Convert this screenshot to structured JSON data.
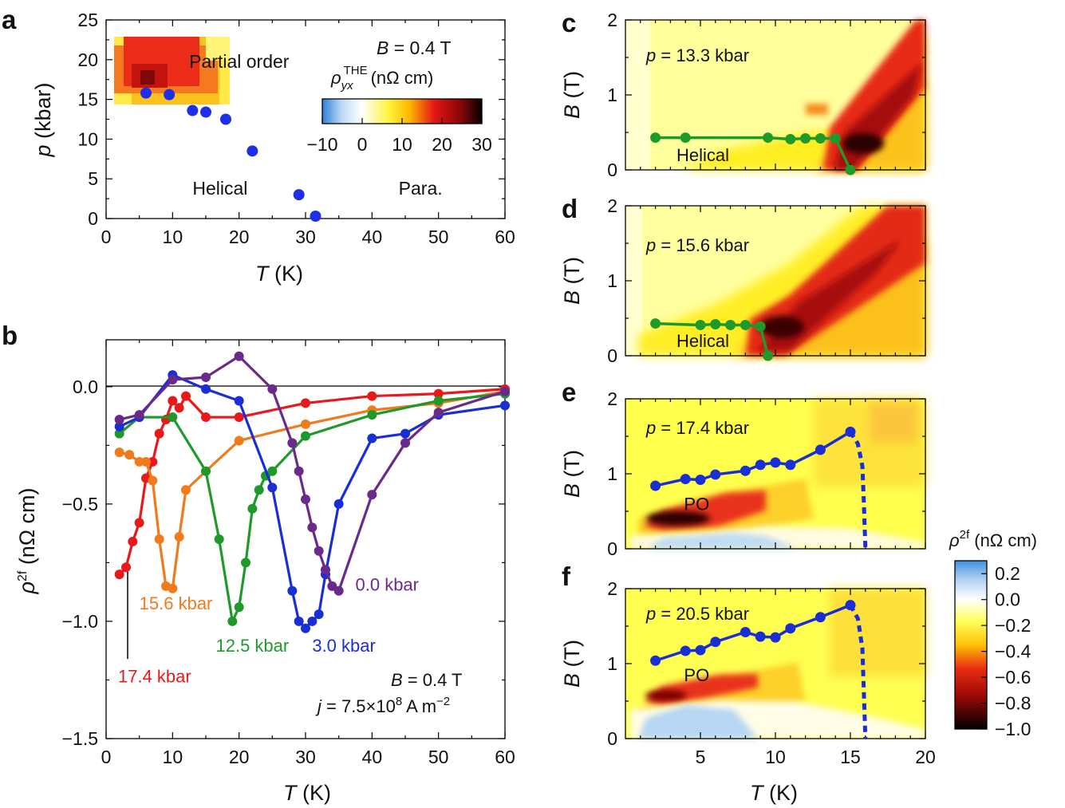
{
  "chart_data": [
    {
      "id": "a",
      "type": "scatter",
      "panel_label": "a",
      "xlabel_var": "T",
      "xlabel_unit": " (K)",
      "ylabel_var": "p",
      "ylabel_unit": " (kbar)",
      "xlim": [
        0,
        60
      ],
      "ylim": [
        0,
        25
      ],
      "xticks": [
        0,
        10,
        20,
        30,
        40,
        50,
        60
      ],
      "yticks": [
        0,
        5,
        10,
        15,
        20,
        25
      ],
      "field_var": "B",
      "field_text": " = 0.4 T",
      "regions": [
        {
          "text": "Partial order",
          "x": 12.5,
          "y": 19.0
        },
        {
          "text": "Helical",
          "x": 13.0,
          "y": 3.0
        },
        {
          "text": "Para.",
          "x": 44.0,
          "y": 3.0
        }
      ],
      "points": {
        "name": "phase boundary",
        "color": "#1f2ee8",
        "x": [
          6,
          9.5,
          13,
          15,
          18,
          22,
          29,
          31.5
        ],
        "y": [
          15.8,
          15.6,
          13.6,
          13.4,
          12.5,
          8.5,
          3.0,
          0.3
        ]
      },
      "colorbar": {
        "label_prefix": "ρ",
        "label_sub": "yx",
        "label_sup": "THE",
        "label_unit": "(nΩ cm)",
        "range": [
          -10,
          30
        ],
        "ticks": [
          "−10",
          "0",
          "10",
          "20",
          "30"
        ],
        "tick_values": [
          -10,
          0,
          10,
          20,
          30
        ]
      },
      "heatmap_note": "partial-order region, T 1–19 K, p 14–23 kbar"
    },
    {
      "id": "b",
      "type": "line",
      "panel_label": "b",
      "xlabel_var": "T",
      "xlabel_unit": " (K)",
      "ylabel_var": "ρ",
      "ylabel_sup": "2f",
      "ylabel_unit": " (nΩ cm)",
      "xlim": [
        0,
        60
      ],
      "ylim": [
        -1.5,
        0.2
      ],
      "xticks": [
        0,
        10,
        20,
        30,
        40,
        50,
        60
      ],
      "yticks": [
        0.0,
        -0.5,
        -1.0,
        -1.5
      ],
      "ytick_labels": [
        "0.0",
        "−0.5",
        "−1.0",
        "−1.5"
      ],
      "note1_var": "B",
      "note1_text": " = 0.4 T",
      "note2_prefix": "j",
      "note2_text": " = 7.5×10",
      "note2_exp": "8",
      "note2_unit": " A m",
      "note2_unit_exp": "−2",
      "series": [
        {
          "name": "17.4 kbar",
          "color": "#e8191b",
          "x": [
            2,
            3,
            4,
            5,
            6,
            7,
            8,
            9,
            10,
            11,
            12,
            15,
            20,
            30,
            40,
            50,
            60
          ],
          "y": [
            -0.8,
            -0.77,
            -0.66,
            -0.58,
            -0.39,
            -0.32,
            -0.2,
            -0.14,
            -0.06,
            -0.09,
            -0.04,
            -0.13,
            -0.13,
            -0.07,
            -0.04,
            -0.03,
            -0.01
          ]
        },
        {
          "name": "15.6 kbar",
          "color": "#f07a1c",
          "x": [
            2,
            3.5,
            5,
            6,
            7,
            8,
            9,
            10,
            11,
            12,
            15,
            20,
            30,
            40,
            50,
            60
          ],
          "y": [
            -0.28,
            -0.29,
            -0.32,
            -0.32,
            -0.4,
            -0.65,
            -0.85,
            -0.86,
            -0.64,
            -0.44,
            -0.36,
            -0.23,
            -0.16,
            -0.1,
            -0.07,
            -0.02
          ]
        },
        {
          "name": "12.5 kbar",
          "color": "#1e9a2a",
          "x": [
            2,
            5,
            10,
            15,
            17,
            19,
            20,
            21,
            22,
            23,
            24,
            25,
            30,
            40,
            50,
            60
          ],
          "y": [
            -0.2,
            -0.13,
            -0.13,
            -0.36,
            -0.65,
            -1.0,
            -0.94,
            -0.75,
            -0.52,
            -0.44,
            -0.38,
            -0.36,
            -0.21,
            -0.12,
            -0.06,
            -0.03
          ]
        },
        {
          "name": "3.0 kbar",
          "color": "#1a2ed6",
          "x": [
            2,
            5,
            10,
            15,
            20,
            25,
            28,
            29,
            30,
            31,
            32,
            33,
            35,
            40,
            45,
            50,
            60
          ],
          "y": [
            -0.17,
            -0.13,
            0.05,
            -0.01,
            -0.06,
            -0.43,
            -0.87,
            -1.0,
            -1.03,
            -1.0,
            -0.97,
            -0.8,
            -0.5,
            -0.22,
            -0.2,
            -0.12,
            -0.08
          ]
        },
        {
          "name": "0.0 kbar",
          "color": "#6a2a8c",
          "x": [
            2,
            5,
            10,
            15,
            20,
            25,
            28,
            29,
            30,
            31,
            32,
            33,
            34,
            35,
            40,
            45,
            50,
            60
          ],
          "y": [
            -0.14,
            -0.12,
            0.03,
            0.04,
            0.13,
            -0.01,
            -0.24,
            -0.36,
            -0.48,
            -0.6,
            -0.7,
            -0.78,
            -0.85,
            -0.87,
            -0.46,
            -0.24,
            -0.11,
            -0.02
          ]
        }
      ],
      "series_labels": [
        {
          "name": "17.4 kbar",
          "text": "17.4 kbar",
          "x": 1.8,
          "y": -1.26
        },
        {
          "name": "15.6 kbar",
          "text": "15.6 kbar",
          "x": 5.0,
          "y": -0.95
        },
        {
          "name": "12.5 kbar",
          "text": "12.5 kbar",
          "x": 16.5,
          "y": -1.13
        },
        {
          "name": "3.0 kbar",
          "text": "3.0 kbar",
          "x": 31.0,
          "y": -1.13
        },
        {
          "name": "0.0 kbar",
          "text": "0.0 kbar",
          "x": 37.5,
          "y": -0.87
        }
      ]
    },
    {
      "id": "c",
      "type": "heatmap",
      "panel_label": "c",
      "ylabel_var": "B",
      "ylabel_unit": " (T)",
      "xlim": [
        0,
        20
      ],
      "ylim": [
        0,
        2
      ],
      "yticks": [
        0,
        1,
        2
      ],
      "pressure_prefix": "p",
      "pressure_text": " = 13.3 kbar",
      "phase_label": {
        "text": "Helical",
        "x": 5.0,
        "y": 0.2
      },
      "boundary": {
        "color": "#1e9a2a",
        "x": [
          2,
          4,
          9.5,
          11,
          12,
          13,
          14,
          15
        ],
        "y": [
          0.43,
          0.43,
          0.43,
          0.41,
          0.42,
          0.42,
          0.42,
          0.0
        ]
      },
      "heatmap_note": "red band from (13.5 K, 0 T) toward (20 K, 1.8 T), peak near 15 K, 0.3 T"
    },
    {
      "id": "d",
      "type": "heatmap",
      "panel_label": "d",
      "ylabel_var": "B",
      "ylabel_unit": " (T)",
      "xlim": [
        0,
        20
      ],
      "ylim": [
        0,
        2
      ],
      "yticks": [
        0,
        1,
        2
      ],
      "pressure_prefix": "p",
      "pressure_text": " = 15.6 kbar",
      "phase_label": {
        "text": "Helical",
        "x": 5.0,
        "y": 0.2
      },
      "boundary": {
        "color": "#1e9a2a",
        "x": [
          2,
          5,
          6,
          7,
          8,
          9,
          9.5
        ],
        "y": [
          0.43,
          0.41,
          0.42,
          0.41,
          0.41,
          0.39,
          0.0
        ]
      },
      "heatmap_note": "red band from (9 K, 0 T) toward (20 K, 2 T)"
    },
    {
      "id": "e",
      "type": "heatmap",
      "panel_label": "e",
      "ylabel_var": "B",
      "ylabel_unit": " (T)",
      "xlim": [
        0,
        20
      ],
      "ylim": [
        0,
        2
      ],
      "yticks": [
        0,
        1,
        2
      ],
      "pressure_prefix": "p",
      "pressure_text": " = 17.4 kbar",
      "phase_label": {
        "text": "PO",
        "x": 5.5,
        "y": 0.6
      },
      "boundary": {
        "color": "#1a2ed6",
        "x": [
          2,
          4,
          5,
          6,
          8,
          9,
          10,
          11,
          13,
          15
        ],
        "y": [
          0.84,
          0.93,
          0.92,
          0.99,
          1.04,
          1.12,
          1.15,
          1.12,
          1.32,
          1.56
        ]
      },
      "dashed": {
        "x": [
          15,
          15.5,
          15.8,
          15.9,
          16.0
        ],
        "y": [
          1.56,
          1.4,
          1.1,
          0.6,
          0.0
        ]
      },
      "heatmap_note": "red band around 0.4–0.6 T from 2 K to 11 K; blue below 0.2 T"
    },
    {
      "id": "f",
      "type": "heatmap",
      "panel_label": "f",
      "xlabel_var": "T",
      "xlabel_unit": " (K)",
      "ylabel_var": "B",
      "ylabel_unit": " (T)",
      "xlim": [
        0,
        20
      ],
      "ylim": [
        0,
        2
      ],
      "xticks": [
        5,
        10,
        15,
        20
      ],
      "yticks": [
        0,
        1,
        2
      ],
      "pressure_prefix": "p",
      "pressure_text": " = 20.5 kbar",
      "phase_label": {
        "text": "PO",
        "x": 5.5,
        "y": 0.85
      },
      "boundary": {
        "color": "#1a2ed6",
        "x": [
          2,
          4,
          5,
          6,
          8,
          9,
          10,
          11,
          13,
          15
        ],
        "y": [
          1.04,
          1.17,
          1.18,
          1.29,
          1.42,
          1.36,
          1.35,
          1.47,
          1.62,
          1.78
        ]
      },
      "dashed": {
        "x": [
          15,
          15.5,
          15.8,
          15.9,
          16.0
        ],
        "y": [
          1.78,
          1.6,
          1.2,
          0.6,
          0.0
        ]
      },
      "heatmap_note": "red band around 0.6–0.8 T from 2 K to 10 K; blue below 0.4 T"
    }
  ],
  "colorbar_right": {
    "label_prefix": "ρ",
    "label_sup": "2f",
    "label_unit": " (nΩ cm)",
    "range": [
      -1.0,
      0.3
    ],
    "tick_values": [
      0.2,
      0.0,
      -0.2,
      -0.4,
      -0.6,
      -0.8,
      -1.0
    ],
    "ticks": [
      "0.2",
      "0.0",
      "−0.2",
      "−0.4",
      "−0.6",
      "−0.8",
      "−1.0"
    ]
  }
}
